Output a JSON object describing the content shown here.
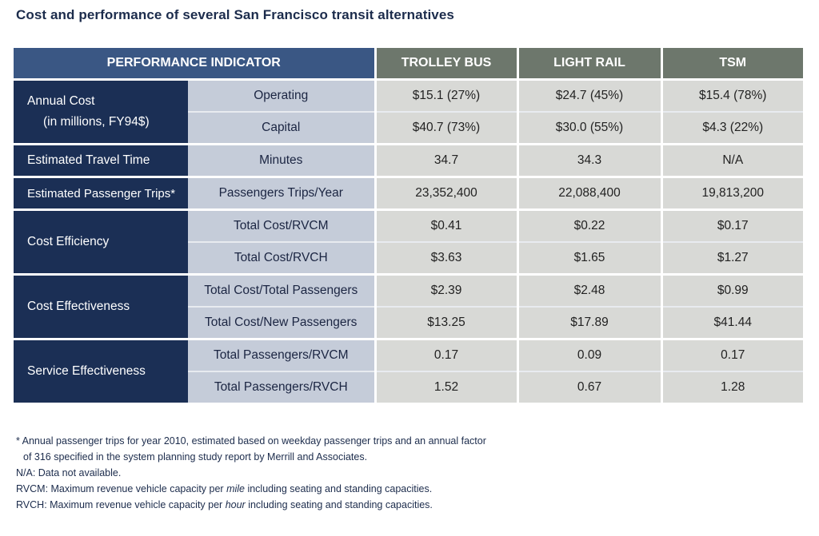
{
  "title": "Cost and performance of several San Francisco transit alternatives",
  "table": {
    "headers": [
      "PERFORMANCE INDICATOR",
      "TROLLEY BUS",
      "LIGHT RAIL",
      "TSM"
    ],
    "groups": {
      "annual_cost": {
        "label": "Annual Cost",
        "sublabel": "(in millions, FY94$)"
      },
      "travel_time": {
        "label": "Estimated Travel Time"
      },
      "passenger_trips": {
        "label": "Estimated Passenger Trips*"
      },
      "cost_efficiency": {
        "label": "Cost Efficiency"
      },
      "cost_effectiveness": {
        "label": "Cost Effectiveness"
      },
      "service_effectiveness": {
        "label": "Service Effectiveness"
      }
    },
    "rows": [
      {
        "metric": "Operating",
        "trolley": "$15.1 (27%)",
        "rail": "$24.7 (45%)",
        "tsm": "$15.4 (78%)"
      },
      {
        "metric": "Capital",
        "trolley": "$40.7 (73%)",
        "rail": "$30.0 (55%)",
        "tsm": "$4.3 (22%)"
      },
      {
        "metric": "Minutes",
        "trolley": "34.7",
        "rail": "34.3",
        "tsm": "N/A"
      },
      {
        "metric": "Passengers Trips/Year",
        "trolley": "23,352,400",
        "rail": "22,088,400",
        "tsm": "19,813,200"
      },
      {
        "metric": "Total Cost/RVCM",
        "trolley": "$0.41",
        "rail": "$0.22",
        "tsm": "$0.17"
      },
      {
        "metric": "Total Cost/RVCH",
        "trolley": "$3.63",
        "rail": "$1.65",
        "tsm": "$1.27"
      },
      {
        "metric": "Total Cost/Total Passengers",
        "trolley": "$2.39",
        "rail": "$2.48",
        "tsm": "$0.99"
      },
      {
        "metric": "Total Cost/New Passengers",
        "trolley": "$13.25",
        "rail": "$17.89",
        "tsm": "$41.44"
      },
      {
        "metric": "Total Passengers/RVCM",
        "trolley": "0.17",
        "rail": "0.09",
        "tsm": "0.17"
      },
      {
        "metric": "Total Passengers/RVCH",
        "trolley": "1.52",
        "rail": "0.67",
        "tsm": "1.28"
      }
    ]
  },
  "footnotes": {
    "asterisk_line1": "* Annual passenger trips for year 2010, estimated based on weekday passenger trips and an annual factor",
    "asterisk_line2": "of 316 specified in the system planning study report by Merrill and Associates.",
    "na": "N/A:  Data not available.",
    "rvcm_pre": "RVCM:  Maximum revenue vehicle capacity per ",
    "rvcm_em": "mile",
    "rvcm_post": " including seating and standing capacities.",
    "rvch_pre": "RVCH:  Maximum revenue vehicle capacity per ",
    "rvch_em": "hour",
    "rvch_post": " including seating and standing capacities."
  }
}
